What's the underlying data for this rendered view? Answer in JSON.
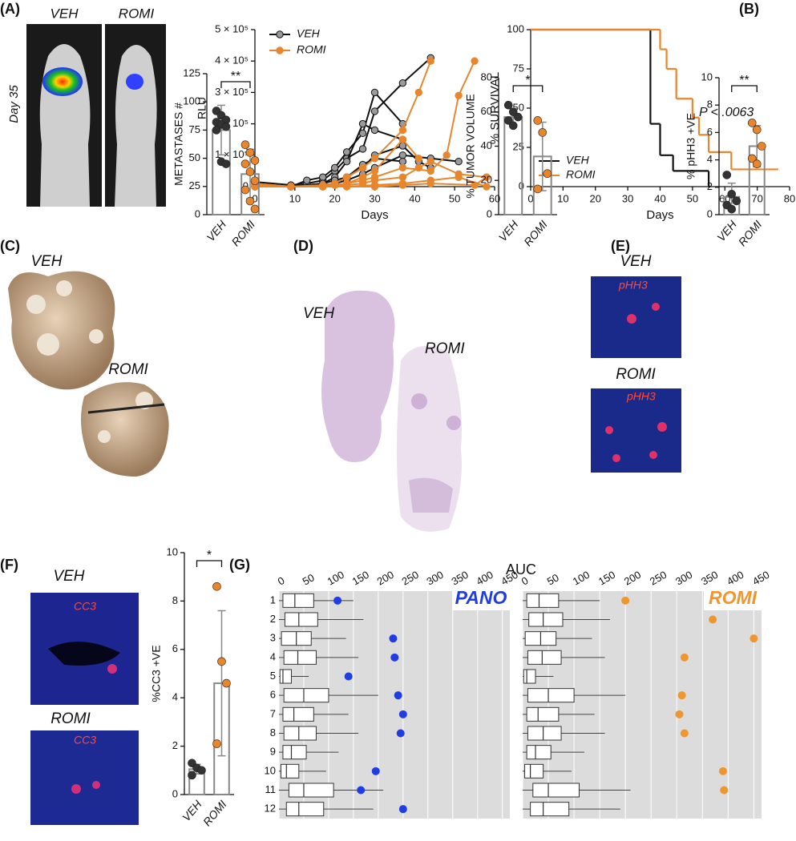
{
  "panel_labels": [
    "(A)",
    "(B)",
    "(C)",
    "(D)",
    "(E)",
    "(F)",
    "(G)"
  ],
  "image_labels": [
    "VEH",
    "ROMI",
    "Day 35",
    "VEH",
    "ROMI",
    "VEH",
    "ROMI",
    "VEH",
    "pHH3",
    "ROMI",
    "pHH3",
    "VEH",
    "CC3",
    "ROMI",
    "CC3"
  ],
  "chart_data": [
    {
      "type": "line",
      "ylabel": "RLU",
      "xlabel": "Days",
      "xlim": [
        0,
        60
      ],
      "xticks": [
        0,
        10,
        20,
        30,
        40,
        50,
        60
      ],
      "ylim": [
        0,
        500000
      ],
      "yticks": [
        0,
        {
          "value": 100000,
          "label": "1 × 10⁵"
        },
        {
          "value": 200000,
          "label": "2 × 10⁵"
        },
        {
          "value": 300000,
          "label": "3 × 10⁵"
        },
        {
          "value": 400000,
          "label": "4 × 10⁵"
        },
        {
          "value": 500000,
          "label": "5 × 10⁵"
        }
      ],
      "series": [
        {
          "name": "VEH",
          "color": "#111111",
          "marker_color": "#9a9a9a",
          "lines": [
            {
              "x": [
                0,
                9,
                13,
                17,
                20,
                23,
                27,
                30,
                37,
                44
              ],
              "values": [
                15000,
                5000,
                10000,
                20000,
                50000,
                90000,
                120000,
                240000,
                330000,
                410000
              ]
            },
            {
              "x": [
                0,
                9,
                13,
                17,
                20,
                23,
                27,
                30,
                37
              ],
              "values": [
                10000,
                0,
                20000,
                30000,
                60000,
                110000,
                170000,
                300000,
                200000
              ]
            },
            {
              "x": [
                0,
                9,
                17,
                20,
                23,
                27,
                30,
                37
              ],
              "values": [
                5000,
                0,
                10000,
                30000,
                80000,
                200000,
                180000,
                150000
              ]
            },
            {
              "x": [
                0,
                9,
                17,
                20,
                23,
                27,
                30,
                37,
                41,
                44
              ],
              "values": [
                0,
                0,
                10000,
                20000,
                30000,
                60000,
                100000,
                130000,
                80000,
                60000
              ]
            },
            {
              "x": [
                0,
                9,
                17,
                20,
                23,
                27,
                30,
                37,
                44,
                51
              ],
              "values": [
                0,
                0,
                5000,
                10000,
                20000,
                40000,
                60000,
                100000,
                90000,
                80000
              ]
            },
            {
              "x": [
                0,
                9,
                17,
                20,
                23,
                27,
                30,
                37
              ],
              "values": [
                0,
                0,
                0,
                10000,
                30000,
                70000,
                90000,
                80000
              ]
            }
          ]
        },
        {
          "name": "ROMI",
          "color": "#e8862e",
          "marker_color": "#e8862e",
          "lines": [
            {
              "x": [
                0,
                9,
                17,
                20,
                23,
                27,
                30,
                37,
                41,
                44
              ],
              "values": [
                10000,
                0,
                5000,
                10000,
                30000,
                60000,
                90000,
                180000,
                300000,
                400000
              ]
            },
            {
              "x": [
                0,
                9,
                17,
                20,
                23,
                27,
                30,
                37,
                44,
                48,
                51,
                55
              ],
              "values": [
                5000,
                0,
                0,
                5000,
                10000,
                20000,
                30000,
                60000,
                50000,
                100000,
                290000,
                400000
              ]
            },
            {
              "x": [
                0,
                9,
                17,
                20,
                23,
                27,
                30,
                37,
                41
              ],
              "values": [
                0,
                0,
                0,
                5000,
                10000,
                30000,
                50000,
                150000,
                90000
              ]
            },
            {
              "x": [
                0,
                9,
                17,
                23,
                27,
                30,
                37,
                41,
                44,
                51,
                58
              ],
              "values": [
                0,
                0,
                0,
                5000,
                10000,
                20000,
                30000,
                60000,
                80000,
                40000,
                30000
              ]
            },
            {
              "x": [
                0,
                9,
                17,
                23,
                30,
                37,
                44,
                51,
                58
              ],
              "values": [
                0,
                0,
                0,
                0,
                5000,
                10000,
                20000,
                30000,
                0
              ]
            },
            {
              "x": [
                0,
                9,
                17,
                23,
                30,
                37,
                44,
                55,
                58
              ],
              "values": [
                0,
                0,
                0,
                0,
                0,
                5000,
                10000,
                5000,
                30000
              ]
            }
          ]
        }
      ]
    },
    {
      "type": "step",
      "ylabel": "% SURVIVAL",
      "xlabel": "Days",
      "annotation": "P < .0063",
      "xlim": [
        0,
        80
      ],
      "xticks": [
        0,
        10,
        20,
        30,
        40,
        50,
        60,
        70,
        80
      ],
      "ylim": [
        0,
        100
      ],
      "yticks": [
        0,
        25,
        50,
        75,
        100
      ],
      "series": [
        {
          "name": "VEH",
          "color": "#111111",
          "x": [
            0,
            37,
            40,
            44,
            55
          ],
          "values": [
            100,
            40,
            20,
            10,
            0
          ]
        },
        {
          "name": "ROMI",
          "color": "#e8862e",
          "x": [
            0,
            40,
            42,
            45,
            50,
            52,
            55,
            62,
            76
          ],
          "values": [
            100,
            87.5,
            75,
            56,
            44,
            33,
            22,
            11,
            11
          ]
        }
      ]
    },
    {
      "type": "bar",
      "ylabel": "METASTASES #",
      "significance": "**",
      "categories": [
        "VEH",
        "ROMI"
      ],
      "values": [
        75,
        36
      ],
      "errors": [
        22,
        22
      ],
      "colors": [
        "#333333",
        "#e8862e"
      ],
      "points": [
        [
          92,
          88,
          84,
          82,
          80,
          78,
          75,
          47,
          45
        ],
        [
          62,
          55,
          48,
          45,
          38,
          30,
          22,
          12,
          5
        ]
      ],
      "ylim": [
        0,
        125
      ],
      "yticks": [
        0,
        25,
        50,
        75,
        100,
        125
      ]
    },
    {
      "type": "bar",
      "ylabel": "% TUMOR VOLUME",
      "significance": "*",
      "categories": [
        "VEH",
        "ROMI"
      ],
      "values": [
        57,
        34
      ],
      "errors": [
        5,
        20
      ],
      "colors": [
        "#333333",
        "#e8862e"
      ],
      "points": [
        [
          64,
          60,
          57,
          55,
          52
        ],
        [
          55,
          48,
          24,
          15
        ]
      ],
      "ylim": [
        0,
        80
      ],
      "yticks": [
        0,
        20,
        40,
        60,
        80
      ]
    },
    {
      "type": "bar",
      "ylabel": "% pHH3 +VE",
      "significance": "**",
      "categories": [
        "VEH",
        "ROMI"
      ],
      "values": [
        1.3,
        5
      ],
      "errors": [
        1,
        1.5
      ],
      "colors": [
        "#333333",
        "#e8862e"
      ],
      "points": [
        [
          2.9,
          1.5,
          1,
          0.7,
          0.4
        ],
        [
          6.7,
          6.2,
          5,
          4.1,
          3.7
        ]
      ],
      "ylim": [
        0,
        10
      ],
      "yticks": [
        0,
        2,
        4,
        6,
        8,
        10
      ]
    },
    {
      "type": "bar",
      "ylabel": "%CC3 +VE",
      "significance": "*",
      "categories": [
        "VEH",
        "ROMI"
      ],
      "values": [
        1.05,
        4.6
      ],
      "errors": [
        0.2,
        3
      ],
      "colors": [
        "#333333",
        "#e8862e"
      ],
      "points": [
        [
          1.3,
          1.1,
          1.0,
          0.8
        ],
        [
          8.6,
          5.5,
          4.6,
          2.1
        ]
      ],
      "ylim": [
        0,
        10
      ],
      "yticks": [
        0,
        2,
        4,
        6,
        8,
        10
      ]
    },
    {
      "type": "box",
      "title": "AUC",
      "categories": [
        "1",
        "2",
        "3",
        "4",
        "5",
        "6",
        "7",
        "8",
        "9",
        "10",
        "11",
        "12"
      ],
      "xlim": [
        0,
        465
      ],
      "xticks": [
        0,
        50,
        100,
        150,
        200,
        250,
        300,
        350,
        400,
        450
      ],
      "boxes": [
        [
          0,
          8,
          32,
          70,
          150
        ],
        [
          0,
          12,
          40,
          78,
          170
        ],
        [
          0,
          5,
          35,
          65,
          135
        ],
        [
          0,
          10,
          38,
          75,
          160
        ],
        [
          0,
          2,
          8,
          25,
          60
        ],
        [
          0,
          10,
          50,
          100,
          200
        ],
        [
          0,
          8,
          30,
          70,
          140
        ],
        [
          0,
          10,
          40,
          75,
          160
        ],
        [
          0,
          8,
          25,
          55,
          120
        ],
        [
          0,
          4,
          15,
          40,
          95
        ],
        [
          0,
          20,
          50,
          110,
          210
        ],
        [
          0,
          15,
          40,
          90,
          190
        ]
      ],
      "panels": [
        {
          "name": "PANO",
          "color": "#1f3de0",
          "values": [
            118,
            null,
            230,
            233,
            140,
            240,
            250,
            245,
            null,
            195,
            165,
            250
          ]
        },
        {
          "name": "ROMI",
          "color": "#f0962e",
          "values": [
            200,
            370,
            450,
            315,
            null,
            310,
            305,
            315,
            null,
            390,
            392,
            null
          ]
        }
      ]
    }
  ]
}
